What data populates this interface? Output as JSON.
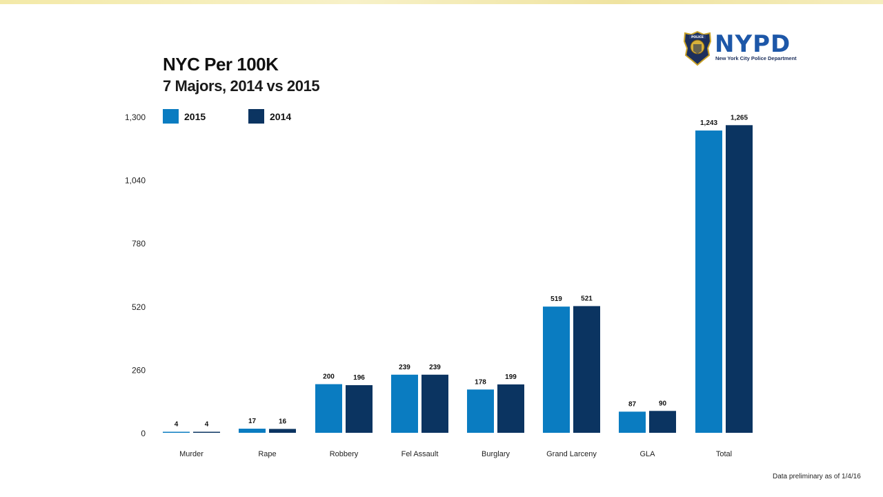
{
  "header": {
    "title": "NYC Per 100K",
    "subtitle": "7 Majors,  2014 vs 2015"
  },
  "logo": {
    "word": "NYPD",
    "subtitle": "New York City Police Department",
    "badge_text": "POLICE"
  },
  "footnote": "Data preliminary as of 1/4/16",
  "colors": {
    "series_2015": "#0a7cc1",
    "series_2014": "#0b3461"
  },
  "chart_data": {
    "type": "bar",
    "title": "NYC Per 100K",
    "subtitle": "7 Majors,  2014 vs 2015",
    "categories": [
      "Murder",
      "Rape",
      "Robbery",
      "Fel Assault",
      "Burglary",
      "Grand Larceny",
      "GLA",
      "Total"
    ],
    "series": [
      {
        "name": "2015",
        "values": [
          4,
          17,
          200,
          239,
          178,
          519,
          87,
          1243
        ],
        "labels": [
          "4",
          "17",
          "200",
          "239",
          "178",
          "519",
          "87",
          "1,243"
        ]
      },
      {
        "name": "2014",
        "values": [
          4,
          16,
          196,
          239,
          199,
          521,
          90,
          1265
        ],
        "labels": [
          "4",
          "16",
          "196",
          "239",
          "199",
          "521",
          "90",
          "1,265"
        ]
      }
    ],
    "yticks": [
      0,
      260,
      520,
      780,
      1040,
      1300
    ],
    "ytick_labels": [
      "0",
      "260",
      "520",
      "780",
      "1,040",
      "1,300"
    ],
    "ylim": [
      0,
      1300
    ],
    "xlabel": "",
    "ylabel": "",
    "grid": false,
    "legend_position": "top-left"
  }
}
